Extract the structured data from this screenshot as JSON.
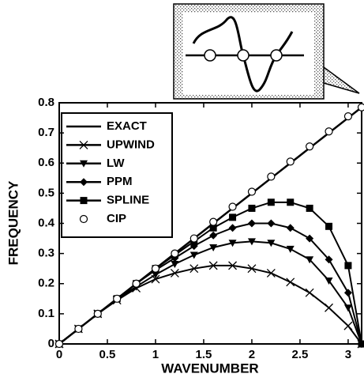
{
  "chart_data": {
    "type": "line",
    "xlabel": "WAVENUMBER",
    "ylabel": "FREQUENCY",
    "x": [
      0,
      0.2,
      0.4,
      0.6,
      0.8,
      1.0,
      1.2,
      1.4,
      1.6,
      1.8,
      2.0,
      2.2,
      2.4,
      2.6,
      2.8,
      3.0,
      3.14
    ],
    "series": [
      {
        "name": "EXACT",
        "color": "#000000",
        "marker": "none",
        "line": true,
        "values": [
          0,
          0.05,
          0.1,
          0.15,
          0.2,
          0.25,
          0.3,
          0.35,
          0.4,
          0.45,
          0.5,
          0.55,
          0.6,
          0.65,
          0.7,
          0.75,
          0.785
        ]
      },
      {
        "name": "UPWIND",
        "color": "#000000",
        "marker": "x",
        "line": true,
        "values": [
          0,
          0.05,
          0.1,
          0.145,
          0.185,
          0.215,
          0.235,
          0.25,
          0.26,
          0.26,
          0.25,
          0.235,
          0.205,
          0.17,
          0.12,
          0.06,
          0
        ]
      },
      {
        "name": "LW",
        "color": "#000000",
        "marker": "triangle-down",
        "line": true,
        "values": [
          0,
          0.05,
          0.1,
          0.15,
          0.19,
          0.23,
          0.265,
          0.295,
          0.32,
          0.335,
          0.34,
          0.335,
          0.315,
          0.28,
          0.21,
          0.12,
          0
        ]
      },
      {
        "name": "PPM",
        "color": "#000000",
        "marker": "diamond",
        "line": true,
        "values": [
          0,
          0.05,
          0.1,
          0.15,
          0.2,
          0.245,
          0.285,
          0.325,
          0.36,
          0.385,
          0.4,
          0.4,
          0.385,
          0.35,
          0.28,
          0.17,
          0
        ]
      },
      {
        "name": "SPLINE",
        "color": "#000000",
        "marker": "square",
        "line": true,
        "values": [
          0,
          0.05,
          0.1,
          0.15,
          0.2,
          0.25,
          0.295,
          0.34,
          0.385,
          0.42,
          0.45,
          0.47,
          0.47,
          0.45,
          0.39,
          0.26,
          0
        ]
      },
      {
        "name": "CIP",
        "color": "#000000",
        "marker": "circle-open",
        "line": false,
        "values": [
          0,
          0.05,
          0.1,
          0.15,
          0.2,
          0.25,
          0.3,
          0.35,
          0.405,
          0.455,
          0.505,
          0.555,
          0.605,
          0.655,
          0.705,
          0.755,
          0.785
        ]
      }
    ],
    "xlim": [
      0,
      3.14
    ],
    "xticks": [
      0,
      0.5,
      1,
      1.5,
      2,
      2.5,
      3
    ],
    "ylim": [
      0,
      0.8
    ],
    "yticks": [
      0,
      0.1,
      0.2,
      0.3,
      0.4,
      0.5,
      0.6,
      0.7,
      0.8
    ],
    "grid": false,
    "legend": "upper-left"
  }
}
